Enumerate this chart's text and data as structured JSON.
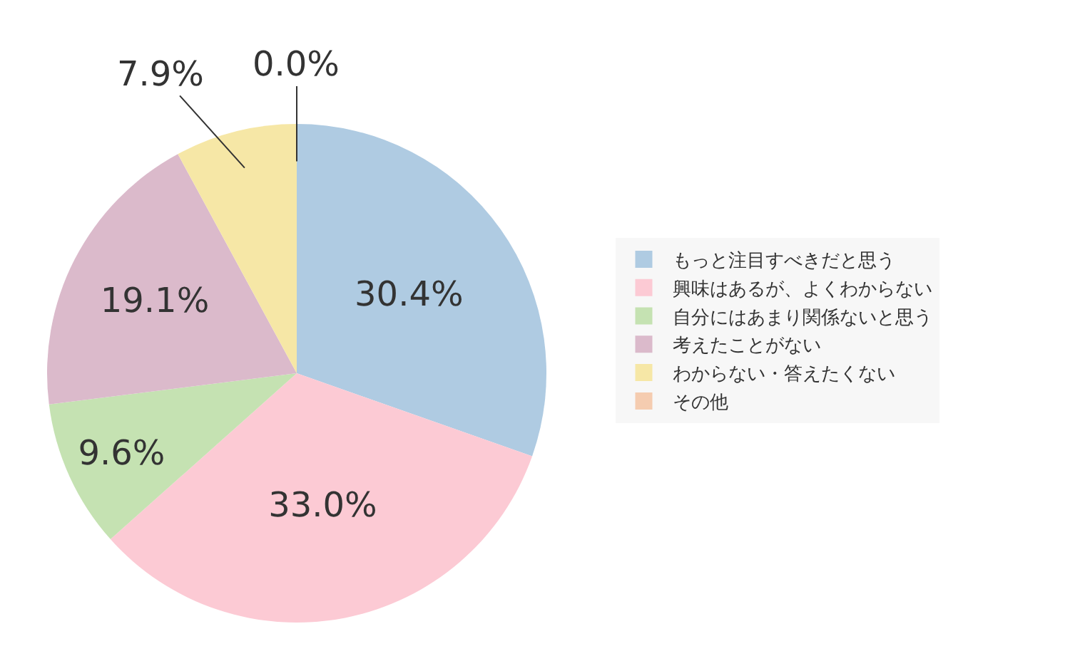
{
  "chart_data": {
    "type": "pie",
    "categories": [
      "もっと注目すべきだと思う",
      "興味はあるが、よくわからない",
      "自分にはあまり関係ないと思う",
      "考えたことがない",
      "わからない・答えたくない",
      "その他"
    ],
    "values": [
      30.4,
      33.0,
      9.6,
      19.1,
      7.9,
      0.0
    ],
    "colors": [
      "#afcbe2",
      "#fccad4",
      "#c5e2b2",
      "#dbbacb",
      "#f6e7a6",
      "#f5ccb0"
    ],
    "value_labels": [
      "30.4%",
      "33.0%",
      "9.6%",
      "19.1%",
      "7.9%",
      "0.0%"
    ],
    "legend": "right"
  }
}
